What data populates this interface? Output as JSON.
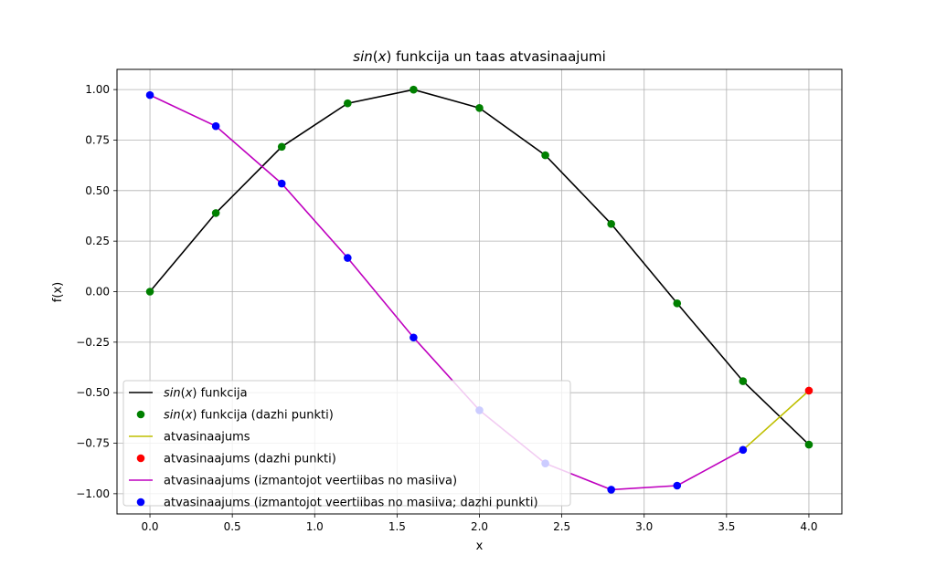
{
  "chart_data": {
    "type": "line",
    "title": "sin(x) funkcija un taas atvasinaajumi",
    "xlabel": "x",
    "ylabel": "f(x)",
    "xlim": [
      -0.2,
      4.2
    ],
    "ylim": [
      -1.1,
      1.1
    ],
    "grid": true,
    "legend_position": "lower-left",
    "xticks": [
      "0.0",
      "0.5",
      "1.0",
      "1.5",
      "2.0",
      "2.5",
      "3.0",
      "3.5",
      "4.0"
    ],
    "yticks": [
      "1.00",
      "0.75",
      "0.50",
      "0.25",
      "0.00",
      "−0.25",
      "−0.50",
      "−0.75",
      "−1.00"
    ],
    "x": [
      0.0,
      0.4,
      0.8,
      1.2,
      1.6,
      2.0,
      2.4,
      2.8,
      3.2,
      3.6,
      4.0
    ],
    "series": [
      {
        "name": "sin(x) funkcija",
        "style": "line",
        "color": "#000000",
        "x": [
          0.0,
          0.4,
          0.8,
          1.2,
          1.6,
          2.0,
          2.4,
          2.8,
          3.2,
          3.6,
          4.0
        ],
        "values": [
          0.0,
          0.389,
          0.717,
          0.932,
          0.9996,
          0.909,
          0.675,
          0.335,
          -0.058,
          -0.443,
          -0.757
        ]
      },
      {
        "name": "sin(x) funkcija (dazhi punkti)",
        "style": "markers",
        "color": "#008000",
        "x": [
          0.0,
          0.4,
          0.8,
          1.2,
          1.6,
          2.0,
          2.4,
          2.8,
          3.2,
          3.6,
          4.0
        ],
        "values": [
          0.0,
          0.389,
          0.717,
          0.932,
          0.9996,
          0.909,
          0.675,
          0.335,
          -0.058,
          -0.443,
          -0.757
        ]
      },
      {
        "name": "atvasinaajums",
        "style": "line",
        "color": "#bfbf00",
        "x": [
          3.6,
          4.0
        ],
        "values": [
          -0.783,
          -0.49
        ]
      },
      {
        "name": "atvasinaajums (dazhi punkti)",
        "style": "markers",
        "color": "#ff0000",
        "x": [
          4.0
        ],
        "values": [
          -0.49
        ]
      },
      {
        "name": "atvasinaajums (izmantojot veertiibas no masiiva)",
        "style": "line",
        "color": "#bf00bf",
        "x": [
          0.0,
          0.4,
          0.8,
          1.2,
          1.6,
          2.0,
          2.4,
          2.8,
          3.2,
          3.6
        ],
        "values": [
          0.973,
          0.819,
          0.535,
          0.167,
          -0.227,
          -0.587,
          -0.85,
          -0.98,
          -0.96,
          -0.783
        ]
      },
      {
        "name": "atvasinaajums (izmantojot veertiibas no masiiva; dazhi punkti)",
        "style": "markers",
        "color": "#0000ff",
        "x": [
          0.0,
          0.4,
          0.8,
          1.2,
          1.6,
          2.0,
          2.4,
          2.8,
          3.2,
          3.6
        ],
        "values": [
          0.973,
          0.819,
          0.535,
          0.167,
          -0.227,
          -0.587,
          -0.85,
          -0.98,
          -0.96,
          -0.783
        ]
      }
    ]
  }
}
